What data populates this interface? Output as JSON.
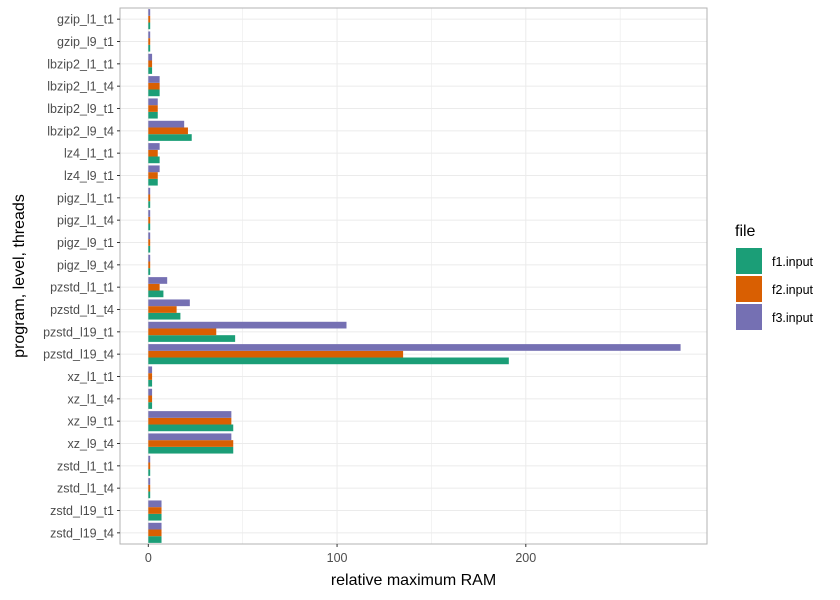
{
  "chart_data": {
    "type": "bar",
    "orientation": "horizontal",
    "grouped": true,
    "categories": [
      "gzip_l1_t1",
      "gzip_l9_t1",
      "lbzip2_l1_t1",
      "lbzip2_l1_t4",
      "lbzip2_l9_t1",
      "lbzip2_l9_t4",
      "lz4_l1_t1",
      "lz4_l9_t1",
      "pigz_l1_t1",
      "pigz_l1_t4",
      "pigz_l9_t1",
      "pigz_l9_t4",
      "pzstd_l1_t1",
      "pzstd_l1_t4",
      "pzstd_l19_t1",
      "pzstd_l19_t4",
      "xz_l1_t1",
      "xz_l1_t4",
      "xz_l9_t1",
      "xz_l9_t4",
      "zstd_l1_t1",
      "zstd_l1_t4",
      "zstd_l19_t1",
      "zstd_l19_t4"
    ],
    "series": [
      {
        "name": "f1.input",
        "color": "#1b9e77",
        "values": [
          1,
          1,
          2,
          6,
          5,
          23,
          6,
          5,
          1,
          1,
          1,
          1,
          8,
          17,
          46,
          191,
          2,
          2,
          45,
          45,
          1,
          1,
          7,
          7
        ]
      },
      {
        "name": "f2.input",
        "color": "#d95f02",
        "values": [
          1,
          1,
          2,
          6,
          5,
          21,
          5,
          5,
          1,
          1,
          1,
          1,
          6,
          15,
          36,
          135,
          2,
          2,
          44,
          45,
          1,
          1,
          7,
          7
        ]
      },
      {
        "name": "f3.input",
        "color": "#7570b3",
        "values": [
          1,
          1,
          2,
          6,
          5,
          19,
          6,
          6,
          1,
          1,
          1,
          1,
          10,
          22,
          105,
          282,
          2,
          2,
          44,
          44,
          1,
          1,
          7,
          7
        ]
      }
    ],
    "xlabel": "relative maximum RAM",
    "ylabel": "program, level, threads",
    "xlim": [
      -15,
      296
    ],
    "xticks": [
      0,
      100,
      200
    ],
    "grid": true,
    "legend_position": "right",
    "legend_title": "file"
  }
}
